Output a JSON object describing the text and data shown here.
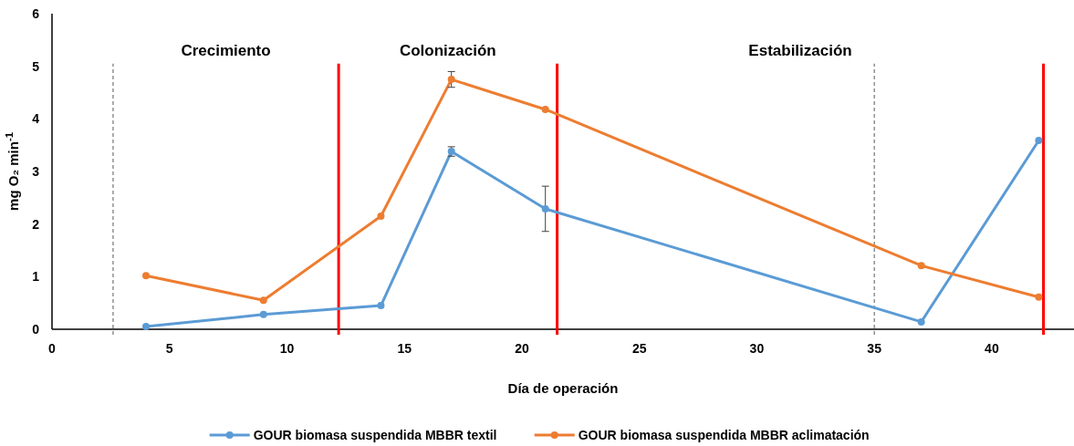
{
  "chart_data": {
    "type": "line",
    "xlabel": "Día de operación",
    "ylabel": "mg O₂ min$^{-1}$",
    "xlim": [
      0,
      43.5
    ],
    "xticks": [
      0,
      5,
      10,
      15,
      20,
      25,
      30,
      35,
      40
    ],
    "ylim": [
      0,
      6
    ],
    "yticks": [
      0,
      1,
      2,
      3,
      4,
      5,
      6
    ],
    "grid": false,
    "legend": "bottom",
    "marker": "circle",
    "line_style": "solid",
    "series": [
      {
        "name": "GOUR biomasa suspendida MBBR textil",
        "color": "#5b9bd5",
        "x": [
          4,
          9,
          14,
          17,
          21,
          37,
          42
        ],
        "values": [
          0.05,
          0.28,
          0.45,
          3.38,
          2.29,
          0.14,
          3.59
        ],
        "errors": [
          null,
          null,
          null,
          0.09,
          0.43,
          null,
          null
        ]
      },
      {
        "name": "GOUR biomasa suspendida MBBR aclimatación",
        "color": "#ed7d31",
        "x": [
          4,
          9,
          14,
          17,
          21,
          37,
          42
        ],
        "values": [
          1.02,
          0.55,
          2.15,
          4.75,
          4.18,
          1.21,
          0.61
        ],
        "errors": [
          null,
          null,
          null,
          0.15,
          null,
          null,
          null
        ]
      }
    ],
    "ref_lines": [
      {
        "axis": "x",
        "value": 2.6,
        "label": null,
        "color": "#595959",
        "line_style": "dashed"
      },
      {
        "axis": "x",
        "value": 12.2,
        "label": null,
        "color": "#ff0000",
        "line_style": "solid"
      },
      {
        "axis": "x",
        "value": 21.5,
        "label": null,
        "color": "#ff0000",
        "line_style": "solid"
      },
      {
        "axis": "x",
        "value": 35,
        "label": null,
        "color": "#595959",
        "line_style": "dashed"
      },
      {
        "axis": "x",
        "value": 42.2,
        "label": null,
        "color": "#ff0000",
        "line_style": "solid"
      }
    ],
    "annotations": [
      "Crecimiento",
      "Colonización",
      "Estabilización"
    ]
  }
}
